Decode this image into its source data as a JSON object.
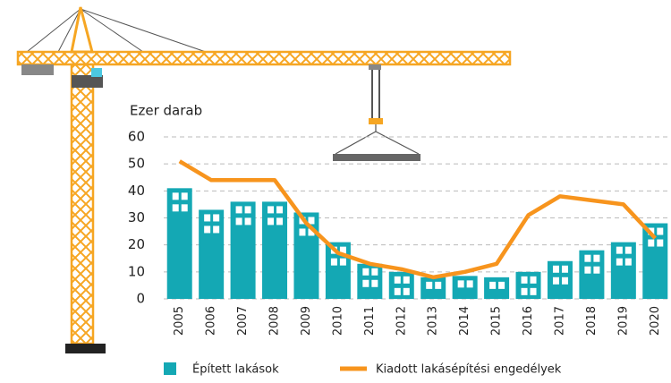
{
  "chart_data": {
    "type": "bar-line",
    "y_axis_label": "Ezer darab",
    "categories": [
      "2005",
      "2006",
      "2007",
      "2008",
      "2009",
      "2010",
      "2011",
      "2012",
      "2013",
      "2014",
      "2015",
      "2016",
      "2017",
      "2018",
      "2019",
      "2020"
    ],
    "series": [
      {
        "name": "Épített lakások",
        "type": "bar",
        "color": "#14a8b4",
        "values": [
          41,
          33,
          36,
          36,
          32,
          21,
          13,
          10,
          8,
          8.5,
          8,
          10,
          14,
          18,
          21,
          28
        ]
      },
      {
        "name": "Kiadott lakásépítési engedélyek",
        "type": "line",
        "color": "#f7941d",
        "values": [
          51,
          44,
          44,
          44,
          28,
          17,
          13,
          11,
          8,
          10,
          13,
          31,
          38,
          36.5,
          35,
          22.5
        ]
      }
    ],
    "ylim": [
      0,
      60
    ],
    "yticks": [
      0,
      10,
      20,
      30,
      40,
      50,
      60
    ],
    "grid": true
  }
}
